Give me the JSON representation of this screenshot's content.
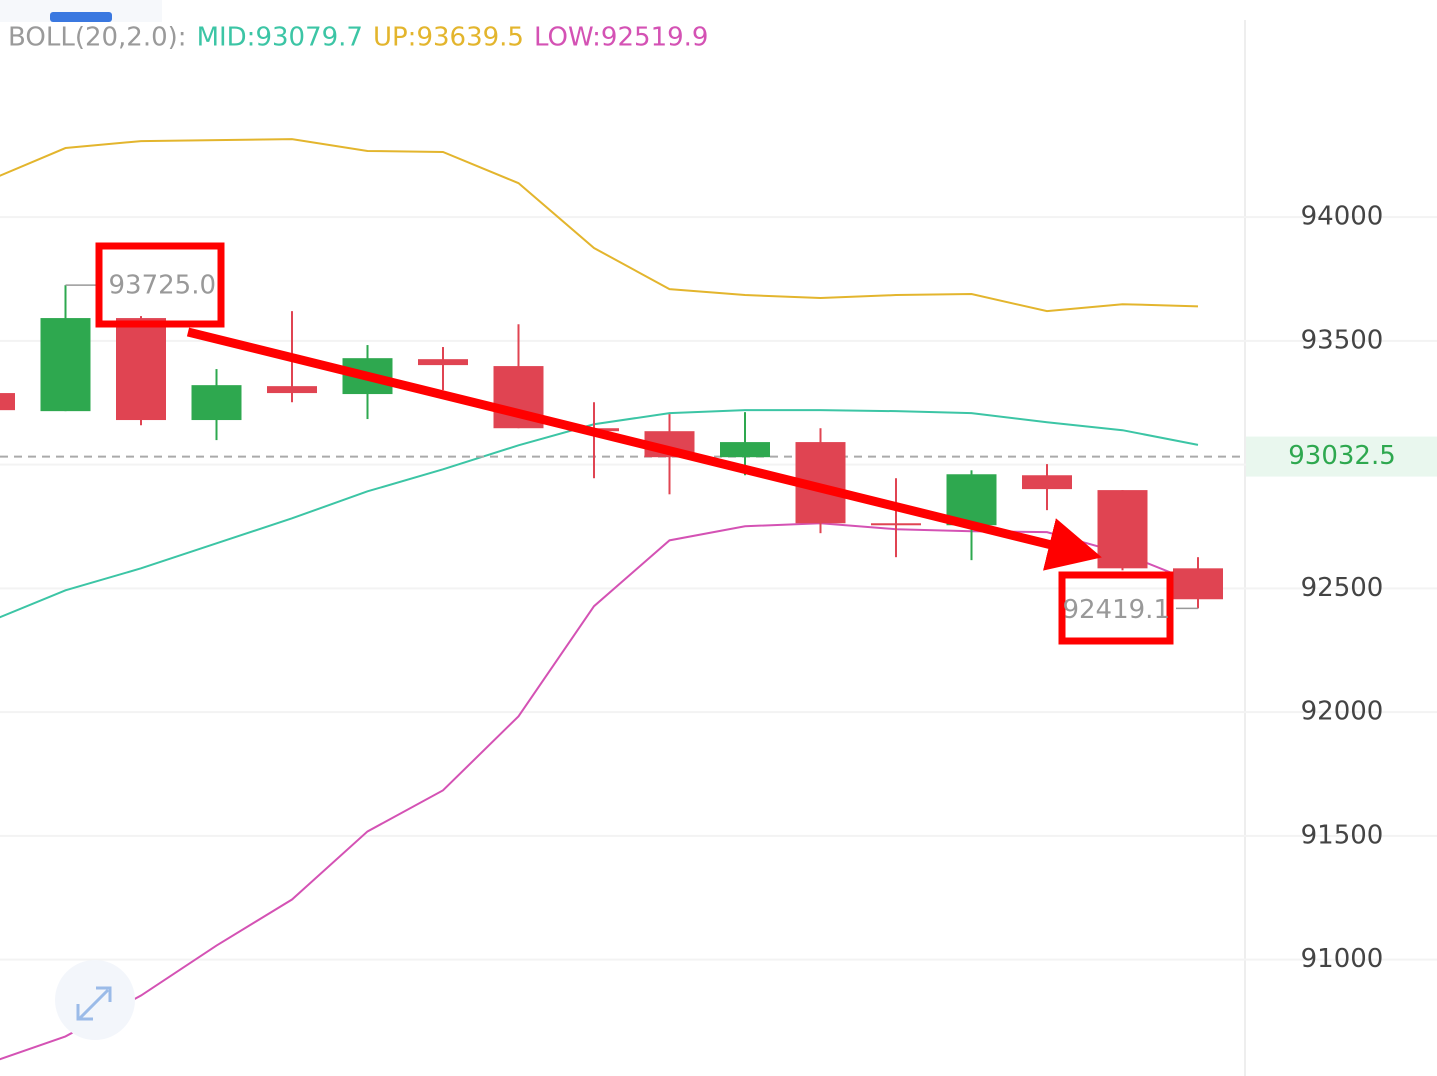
{
  "chart_data": {
    "type": "candlestick",
    "header": [
      {
        "text": "BOLL(20,2.0):",
        "color": "#9a9a9a"
      },
      {
        "text": "MID:93079.7",
        "color": "#3cc5a5"
      },
      {
        "text": "UP:93639.5",
        "color": "#e3b52d"
      },
      {
        "text": "LOW:92519.9",
        "color": "#d452b4"
      }
    ],
    "categories": [
      null,
      null,
      null,
      null,
      null,
      null,
      null,
      null,
      null,
      null,
      null,
      null,
      null,
      null,
      null,
      null,
      null
    ],
    "candles": {
      "up_color": "#2ea84f",
      "down_color": "#e04452",
      "open": [
        93289,
        93216,
        93592,
        93180,
        93317,
        93285,
        93426,
        93398,
        93147,
        93135,
        93030,
        93091,
        92763,
        92755,
        92957,
        92897,
        92581
      ],
      "high": [
        93295,
        93725,
        93600,
        93386,
        93620,
        93483,
        93475,
        93567,
        93252,
        93204,
        93212,
        93147,
        92945,
        92977,
        93002,
        92897,
        92626
      ],
      "low": [
        93215,
        93216,
        93159,
        93099,
        93252,
        93184,
        93301,
        93147,
        92945,
        92880,
        92957,
        92723,
        92626,
        92614,
        92816,
        92573,
        92419.1
      ],
      "close": [
        93220,
        93592,
        93180,
        93321,
        93289,
        93430,
        93402,
        93147,
        93135,
        93030,
        93091,
        92763,
        92755,
        92961,
        92901,
        92581,
        92456
      ]
    },
    "bands": [
      {
        "color": "#e3b52d",
        "values": [
          94150,
          94279,
          94307,
          94311,
          94315,
          94267,
          94263,
          94137,
          93875,
          93709,
          93685,
          93673,
          93685,
          93689,
          93620,
          93648,
          93639.5
        ]
      },
      {
        "color": "#3cc5a5",
        "values": [
          92367,
          92492,
          92581,
          92682,
          92783,
          92892,
          92981,
          93078,
          93163,
          93208,
          93220,
          93220,
          93216,
          93208,
          93171,
          93139,
          93079.7
        ]
      },
      {
        "color": "#d452b4",
        "values": [
          90584,
          90690,
          90855,
          91057,
          91243,
          91518,
          91684,
          91983,
          92428,
          92694,
          92751,
          92763,
          92739,
          92731,
          92727,
          92642,
          92519.9
        ]
      }
    ],
    "max_label": "93725.0",
    "min_label": "92419.1",
    "last_price": 93032.5,
    "last_price_color": "#2ea84f",
    "ylim": [
      90530,
      94877
    ],
    "yticks": [
      91000,
      91500,
      92000,
      92500,
      93000,
      93500,
      94000
    ],
    "grid": true
  }
}
